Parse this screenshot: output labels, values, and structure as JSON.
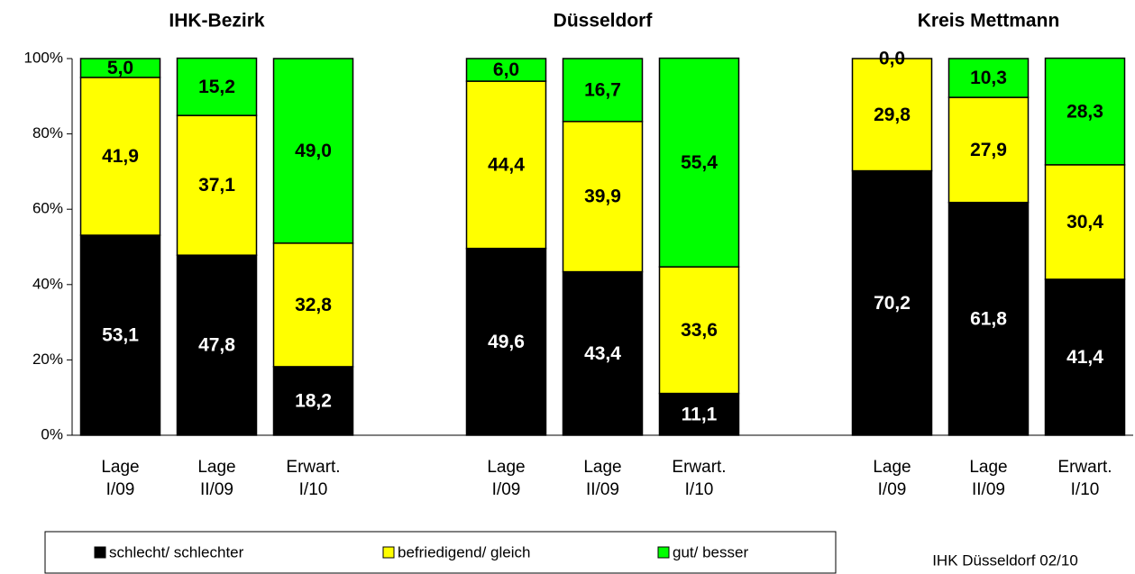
{
  "chart_data": {
    "type": "stacked_bar_100",
    "group_labels": [
      "IHK-Bezirk",
      "Düsseldorf",
      "Kreis Mettmann"
    ],
    "categories": [
      "Lage\nI/09",
      "Lage\nII/09",
      "Erwart.\nI/10",
      null,
      "Lage\nI/09",
      "Lage\nII/09",
      "Erwart.\nI/10",
      null,
      "Lage\nI/09",
      "Lage\nII/09",
      "Erwart.\nI/10"
    ],
    "series": [
      {
        "name": "schlecht/ schlechter",
        "color": "#000000",
        "label_color": "#ffffff",
        "values": [
          53.1,
          47.8,
          18.2,
          null,
          49.6,
          43.4,
          11.1,
          null,
          70.2,
          61.8,
          41.4
        ],
        "value_labels": [
          "53,1",
          "47,8",
          "18,2",
          null,
          "49,6",
          "43,4",
          "11,1",
          null,
          "70,2",
          "61,8",
          "41,4"
        ]
      },
      {
        "name": "befriedigend/ gleich",
        "color": "#ffff00",
        "label_color": "#000000",
        "values": [
          41.9,
          37.1,
          32.8,
          null,
          44.4,
          39.9,
          33.6,
          null,
          29.8,
          27.9,
          30.4
        ],
        "value_labels": [
          "41,9",
          "37,1",
          "32,8",
          null,
          "44,4",
          "39,9",
          "33,6",
          null,
          "29,8",
          "27,9",
          "30,4"
        ]
      },
      {
        "name": "gut/ besser",
        "color": "#00ff00",
        "label_color": "#000000",
        "values": [
          5.0,
          15.2,
          49.0,
          null,
          6.0,
          16.7,
          55.4,
          null,
          0.0,
          10.3,
          28.3
        ],
        "value_labels": [
          "5,0",
          "15,2",
          "49,0",
          null,
          "6,0",
          "16,7",
          "55,4",
          null,
          "0,0",
          "10,3",
          "28,3"
        ]
      }
    ],
    "ylim": [
      0,
      100
    ],
    "yticks": [
      {
        "value": 0,
        "label": "0%"
      },
      {
        "value": 20,
        "label": "20%"
      },
      {
        "value": 40,
        "label": "40%"
      },
      {
        "value": 60,
        "label": "60%"
      },
      {
        "value": 80,
        "label": "80%"
      },
      {
        "value": 100,
        "label": "100%"
      }
    ],
    "source": "IHK Düsseldorf 02/10"
  }
}
